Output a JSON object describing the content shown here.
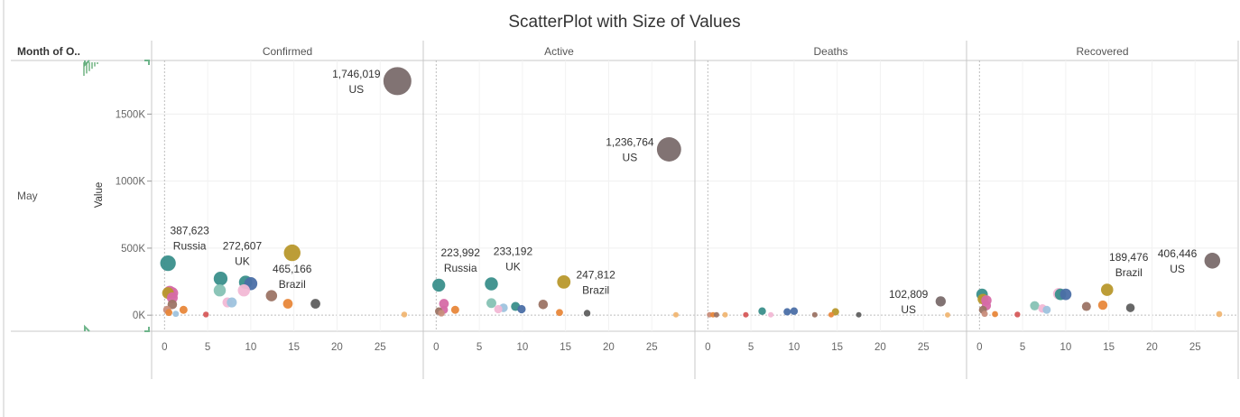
{
  "chart_data": {
    "type": "scatter",
    "title": "ScatterPlot with Size of Values",
    "row_header": "Month of O..",
    "row_value": "May",
    "ylabel": "Value",
    "ylim": [
      -120000,
      1900000
    ],
    "yticks": [
      0,
      500000,
      1000000,
      1500000
    ],
    "ytick_labels": [
      "0K",
      "500K",
      "1000K",
      "1500K"
    ],
    "xlim": [
      -1.5,
      30
    ],
    "xticks": [
      0,
      5,
      10,
      15,
      20,
      25
    ],
    "xtick_labels": [
      "0",
      "5",
      "10",
      "15",
      "20",
      "25"
    ],
    "colors": {
      "teal": "#3a8f8b",
      "lightteal": "#86c2b4",
      "pink": "#d66aa7",
      "lightpink": "#f2b8d5",
      "blue": "#4b6fa6",
      "lightblue": "#9ec3de",
      "brown": "#9c7465",
      "orange": "#e8873a",
      "gold": "#b8982c",
      "grey": "#7a6c6c",
      "darkgrey": "#5f5f5f",
      "rose": "#c98e7c",
      "peach": "#f0b673",
      "red": "#d65a5a",
      "green": "#6aa56a"
    },
    "panels": [
      {
        "name": "Confirmed",
        "points": [
          {
            "x": 27,
            "y": 1746019,
            "color": "grey"
          },
          {
            "x": 0.4,
            "y": 387623,
            "color": "teal"
          },
          {
            "x": 6.5,
            "y": 272607,
            "color": "teal"
          },
          {
            "x": 14.8,
            "y": 465166,
            "color": "gold"
          },
          {
            "x": 0.6,
            "y": 175000,
            "color": "pink"
          },
          {
            "x": 0.9,
            "y": 165000,
            "color": "pink"
          },
          {
            "x": 0.4,
            "y": 165000,
            "color": "gold"
          },
          {
            "x": 0.9,
            "y": 130000,
            "color": "pink"
          },
          {
            "x": 0.9,
            "y": 80000,
            "color": "brown"
          },
          {
            "x": 0.3,
            "y": 40000,
            "color": "rose"
          },
          {
            "x": 0.5,
            "y": 20000,
            "color": "orange"
          },
          {
            "x": 1.3,
            "y": 10000,
            "color": "lightblue"
          },
          {
            "x": 2.2,
            "y": 40000,
            "color": "orange"
          },
          {
            "x": 6.4,
            "y": 185000,
            "color": "lightteal"
          },
          {
            "x": 7.3,
            "y": 95000,
            "color": "lightpink"
          },
          {
            "x": 7.8,
            "y": 95000,
            "color": "lightblue"
          },
          {
            "x": 9.2,
            "y": 185000,
            "color": "lightpink"
          },
          {
            "x": 9.4,
            "y": 245000,
            "color": "teal"
          },
          {
            "x": 10.0,
            "y": 235000,
            "color": "blue"
          },
          {
            "x": 12.4,
            "y": 145000,
            "color": "brown"
          },
          {
            "x": 14.3,
            "y": 85000,
            "color": "orange"
          },
          {
            "x": 17.5,
            "y": 85000,
            "color": "darkgrey"
          },
          {
            "x": 4.8,
            "y": 5000,
            "color": "red"
          },
          {
            "x": 27.8,
            "y": 5000,
            "color": "peach"
          }
        ],
        "annotations": [
          {
            "x": 27,
            "y": 1746019,
            "value": "1,746,019",
            "country": "US",
            "pos": "left"
          },
          {
            "x": 0.4,
            "y": 387623,
            "value": "387,623",
            "country": "Russia",
            "pos": "above"
          },
          {
            "x": 6.5,
            "y": 272607,
            "value": "272,607",
            "country": "UK",
            "pos": "above"
          },
          {
            "x": 14.8,
            "y": 465166,
            "value": "465,166",
            "country": "Brazil",
            "pos": "below"
          }
        ]
      },
      {
        "name": "Active",
        "points": [
          {
            "x": 27,
            "y": 1236764,
            "color": "grey"
          },
          {
            "x": 0.3,
            "y": 223992,
            "color": "teal"
          },
          {
            "x": 6.4,
            "y": 233192,
            "color": "teal"
          },
          {
            "x": 14.8,
            "y": 247812,
            "color": "gold"
          },
          {
            "x": 0.9,
            "y": 85000,
            "color": "pink"
          },
          {
            "x": 0.9,
            "y": 40000,
            "color": "pink"
          },
          {
            "x": 0.3,
            "y": 30000,
            "color": "brown"
          },
          {
            "x": 0.6,
            "y": 15000,
            "color": "rose"
          },
          {
            "x": 2.2,
            "y": 40000,
            "color": "orange"
          },
          {
            "x": 6.4,
            "y": 90000,
            "color": "lightteal"
          },
          {
            "x": 7.2,
            "y": 45000,
            "color": "lightpink"
          },
          {
            "x": 7.8,
            "y": 55000,
            "color": "lightblue"
          },
          {
            "x": 9.2,
            "y": 65000,
            "color": "teal"
          },
          {
            "x": 9.9,
            "y": 45000,
            "color": "blue"
          },
          {
            "x": 12.4,
            "y": 80000,
            "color": "brown"
          },
          {
            "x": 14.3,
            "y": 20000,
            "color": "orange"
          },
          {
            "x": 17.5,
            "y": 15000,
            "color": "darkgrey"
          },
          {
            "x": 27.8,
            "y": 3000,
            "color": "peach"
          }
        ],
        "annotations": [
          {
            "x": 27,
            "y": 1236764,
            "value": "1,236,764",
            "country": "US",
            "pos": "left"
          },
          {
            "x": 0.3,
            "y": 223992,
            "value": "223,992",
            "country": "Russia",
            "pos": "above"
          },
          {
            "x": 6.4,
            "y": 233192,
            "value": "233,192",
            "country": "UK",
            "pos": "above"
          },
          {
            "x": 14.8,
            "y": 247812,
            "value": "247,812",
            "country": "Brazil",
            "pos": "right"
          }
        ]
      },
      {
        "name": "Deaths",
        "points": [
          {
            "x": 27,
            "y": 102809,
            "color": "grey"
          },
          {
            "x": 0.2,
            "y": 3000,
            "color": "rose"
          },
          {
            "x": 0.6,
            "y": 3000,
            "color": "orange"
          },
          {
            "x": 1.0,
            "y": 3000,
            "color": "brown"
          },
          {
            "x": 2.0,
            "y": 3000,
            "color": "peach"
          },
          {
            "x": 4.4,
            "y": 3000,
            "color": "red"
          },
          {
            "x": 6.3,
            "y": 30000,
            "color": "teal"
          },
          {
            "x": 7.3,
            "y": 3000,
            "color": "lightpink"
          },
          {
            "x": 9.2,
            "y": 25000,
            "color": "blue"
          },
          {
            "x": 10.0,
            "y": 30000,
            "color": "blue"
          },
          {
            "x": 12.4,
            "y": 3000,
            "color": "brown"
          },
          {
            "x": 14.8,
            "y": 25000,
            "color": "gold"
          },
          {
            "x": 14.3,
            "y": 3000,
            "color": "orange"
          },
          {
            "x": 17.5,
            "y": 3000,
            "color": "darkgrey"
          },
          {
            "x": 27.8,
            "y": 2000,
            "color": "peach"
          }
        ],
        "annotations": [
          {
            "x": 27,
            "y": 102809,
            "value": "102,809",
            "country": "US",
            "pos": "left"
          }
        ]
      },
      {
        "name": "Recovered",
        "points": [
          {
            "x": 27,
            "y": 406446,
            "color": "grey"
          },
          {
            "x": 14.8,
            "y": 189476,
            "color": "gold"
          },
          {
            "x": 0.3,
            "y": 155000,
            "color": "teal"
          },
          {
            "x": 0.4,
            "y": 120000,
            "color": "gold"
          },
          {
            "x": 0.8,
            "y": 110000,
            "color": "pink"
          },
          {
            "x": 0.8,
            "y": 70000,
            "color": "pink"
          },
          {
            "x": 0.4,
            "y": 40000,
            "color": "brown"
          },
          {
            "x": 0.6,
            "y": 10000,
            "color": "rose"
          },
          {
            "x": 1.8,
            "y": 8000,
            "color": "orange"
          },
          {
            "x": 4.4,
            "y": 5000,
            "color": "red"
          },
          {
            "x": 6.4,
            "y": 70000,
            "color": "lightteal"
          },
          {
            "x": 7.3,
            "y": 50000,
            "color": "lightpink"
          },
          {
            "x": 7.8,
            "y": 40000,
            "color": "lightblue"
          },
          {
            "x": 9.2,
            "y": 160000,
            "color": "lightpink"
          },
          {
            "x": 9.4,
            "y": 155000,
            "color": "teal"
          },
          {
            "x": 10.0,
            "y": 155000,
            "color": "blue"
          },
          {
            "x": 12.4,
            "y": 65000,
            "color": "brown"
          },
          {
            "x": 14.3,
            "y": 75000,
            "color": "orange"
          },
          {
            "x": 17.5,
            "y": 55000,
            "color": "darkgrey"
          },
          {
            "x": 27.8,
            "y": 8000,
            "color": "peach"
          }
        ],
        "annotations": [
          {
            "x": 27,
            "y": 406446,
            "value": "406,446",
            "country": "US",
            "pos": "left"
          },
          {
            "x": 14.8,
            "y": 189476,
            "value": "189,476",
            "country": "Brazil",
            "pos": "above"
          }
        ]
      }
    ]
  }
}
